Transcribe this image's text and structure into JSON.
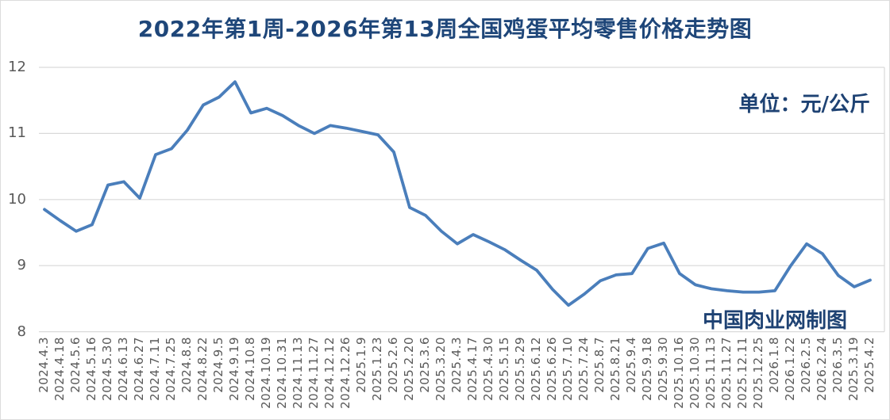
{
  "page": {
    "background": "#ffffff",
    "border_color": "#dcdcdc"
  },
  "header": {
    "title": "2022年第1周-2026年第13周全国鸡蛋平均零售价格走势图",
    "title_color": "#1e4679"
  },
  "annotations": {
    "unit_label": "单位：元/公斤",
    "watermark": "中国肉业网制图",
    "text_color": "#1e4273"
  },
  "colors": {
    "line": "#4a7ebb",
    "grid": "#d9d9d9",
    "tick_text": "#595959"
  },
  "chart_data": {
    "type": "line",
    "title": "2022年第1周-2026年第13周全国鸡蛋平均零售价格走势图",
    "unit": "元/公斤",
    "xlabel": "",
    "ylabel": "",
    "ylim": [
      8,
      12
    ],
    "yticks": [
      8,
      9,
      10,
      11,
      12
    ],
    "grid": "horizontal",
    "legend_position": "none",
    "x_tick_rotation": 90,
    "x": [
      "2024.4.3",
      "2024.4.18",
      "2024.5.6",
      "2024.5.16",
      "2024.5.30",
      "2024.6.13",
      "2024.6.27",
      "2024.7.11",
      "2024.7.25",
      "2024.8.8",
      "2024.8.22",
      "2024.9.5",
      "2024.9.19",
      "2024.10.8",
      "2024.10.19",
      "2024.10.31",
      "2024.11.13",
      "2024.11.27",
      "2024.12.12",
      "2024.12.26",
      "2025.1.9",
      "2025.1.23",
      "2025.2.6",
      "2025.2.20",
      "2025.3.6",
      "2025.3.20",
      "2025.4.3",
      "2025.4.17",
      "2025.4.30",
      "2025.5.15",
      "2025.5.29",
      "2025.6.12",
      "2025.6.26",
      "2025.7.10",
      "2025.7.24",
      "2025.8.7",
      "2025.8.21",
      "2025.9.4",
      "2025.9.18",
      "2025.9.30",
      "2025.10.16",
      "2025.10.30",
      "2025.11.13",
      "2025.11.27",
      "2025.12.11",
      "2025.12.25",
      "2026.1.8",
      "2026.1.22",
      "2026.2.5",
      "2026.2.24",
      "2026.3.5",
      "2025.3.19",
      "2025.4.2"
    ],
    "series": [
      {
        "name": "全国鸡蛋平均零售价格",
        "values": [
          9.85,
          9.68,
          9.52,
          9.62,
          10.22,
          10.27,
          10.02,
          10.68,
          10.77,
          11.05,
          11.43,
          11.55,
          11.78,
          11.31,
          11.38,
          11.27,
          11.12,
          11.0,
          11.12,
          11.08,
          11.03,
          10.98,
          10.72,
          9.88,
          9.76,
          9.52,
          9.33,
          9.47,
          9.36,
          9.24,
          9.08,
          8.93,
          8.64,
          8.4,
          8.57,
          8.77,
          8.86,
          8.88,
          9.26,
          9.34,
          8.88,
          8.71,
          8.65,
          8.62,
          8.6,
          8.6,
          8.62,
          9.0,
          9.33,
          9.18,
          8.85,
          8.68,
          8.78
        ]
      }
    ]
  }
}
